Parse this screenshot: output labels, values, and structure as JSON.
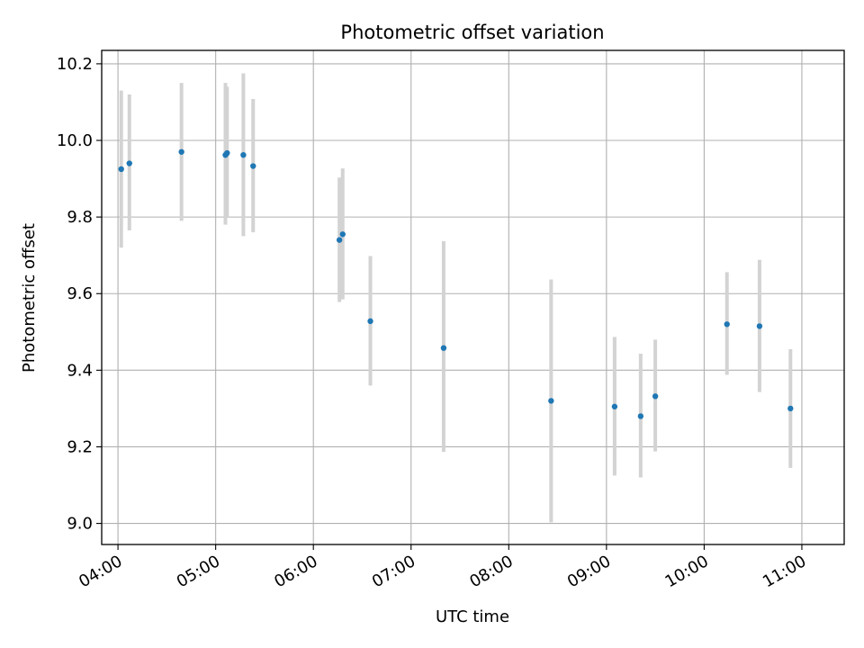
{
  "chart_data": {
    "type": "scatter",
    "title": "Photometric offset variation",
    "xlabel": "UTC time",
    "ylabel": "Photometric offset",
    "x_ticks": [
      "04:00",
      "05:00",
      "06:00",
      "07:00",
      "08:00",
      "09:00",
      "10:00",
      "11:00"
    ],
    "y_ticks": [
      "9.0",
      "9.2",
      "9.4",
      "9.6",
      "9.8",
      "10.0",
      "10.2"
    ],
    "xlim": [
      "03:50",
      "11:26"
    ],
    "ylim": [
      8.945,
      10.235
    ],
    "grid": true,
    "point_color": "#1f77b4",
    "errorbar_color": "#d3d3d3",
    "points": [
      {
        "x": "04:02",
        "y": 9.925,
        "low": 9.72,
        "high": 10.13
      },
      {
        "x": "04:07",
        "y": 9.94,
        "low": 9.765,
        "high": 10.12
      },
      {
        "x": "04:39",
        "y": 9.97,
        "low": 9.79,
        "high": 10.15
      },
      {
        "x": "05:06",
        "y": 9.962,
        "low": 9.78,
        "high": 10.15
      },
      {
        "x": "05:07",
        "y": 9.967,
        "low": 9.8,
        "high": 10.14
      },
      {
        "x": "05:17",
        "y": 9.962,
        "low": 9.75,
        "high": 10.175
      },
      {
        "x": "05:23",
        "y": 9.933,
        "low": 9.76,
        "high": 10.108
      },
      {
        "x": "06:16",
        "y": 9.74,
        "low": 9.578,
        "high": 9.903
      },
      {
        "x": "06:18",
        "y": 9.755,
        "low": 9.585,
        "high": 9.927
      },
      {
        "x": "06:35",
        "y": 9.528,
        "low": 9.36,
        "high": 9.698
      },
      {
        "x": "07:20",
        "y": 9.458,
        "low": 9.187,
        "high": 9.737
      },
      {
        "x": "08:26",
        "y": 9.32,
        "low": 9.003,
        "high": 9.637
      },
      {
        "x": "09:05",
        "y": 9.305,
        "low": 9.125,
        "high": 9.487
      },
      {
        "x": "09:21",
        "y": 9.28,
        "low": 9.12,
        "high": 9.443
      },
      {
        "x": "09:30",
        "y": 9.332,
        "low": 9.188,
        "high": 9.48
      },
      {
        "x": "10:14",
        "y": 9.52,
        "low": 9.388,
        "high": 9.656
      },
      {
        "x": "10:34",
        "y": 9.515,
        "low": 9.343,
        "high": 9.688
      },
      {
        "x": "10:53",
        "y": 9.3,
        "low": 9.145,
        "high": 9.455
      }
    ]
  }
}
